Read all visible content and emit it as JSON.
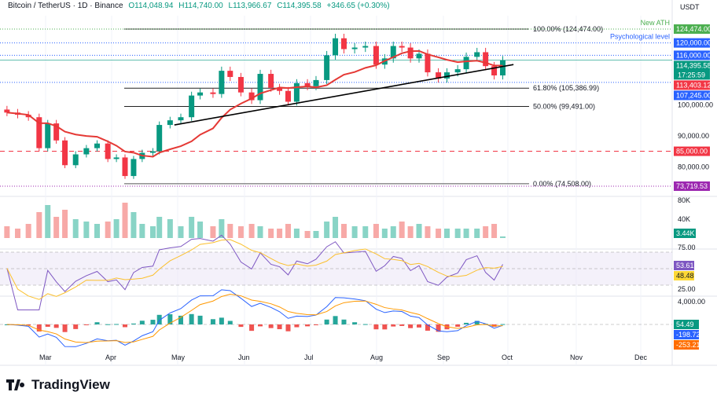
{
  "header": {
    "symbol": "Bitcoin / TetherUS · 1D · Binance",
    "open": "O114,048.94",
    "high": "H114,740.00",
    "low": "L113,966.67",
    "close": "C114,395.58",
    "change": "+346.65 (+0.30%)"
  },
  "currency": "USDT",
  "brand": "TradingView",
  "colors": {
    "up": "#089981",
    "down": "#f23645",
    "ma": "#e53935",
    "blue": "#2962ff",
    "purple": "#9c27b0",
    "rsi": "#7e57c2",
    "signal": "#ff9800"
  },
  "chart_data": {
    "type": "candlestick",
    "x_ticks": [
      "Mar",
      "Apr",
      "May",
      "Jun",
      "Jul",
      "Aug",
      "Sep",
      "Oct",
      "Nov",
      "Dec"
    ],
    "y_ticks": [
      "100,000.00",
      "90,000.00",
      "80,000.00"
    ],
    "ylim": [
      73719.53,
      124474
    ],
    "dates": [
      "02-11",
      "02-16",
      "02-21",
      "02-26",
      "03-02",
      "03-06",
      "03-10",
      "03-15",
      "03-20",
      "03-25",
      "03-30",
      "04-03",
      "04-07",
      "04-11",
      "04-15",
      "04-20",
      "04-23",
      "04-28",
      "05-03",
      "05-08",
      "05-12",
      "05-18",
      "05-22",
      "05-26",
      "05-31",
      "06-05",
      "06-09",
      "06-14",
      "06-18",
      "06-22",
      "06-26",
      "07-01",
      "07-05",
      "07-10",
      "07-14",
      "07-18",
      "07-23",
      "07-28",
      "08-02",
      "08-06",
      "08-10",
      "08-14",
      "08-18",
      "08-22",
      "08-26",
      "08-31",
      "09-04",
      "09-09",
      "09-13",
      "09-18",
      "09-22",
      "09-26",
      "09-30"
    ],
    "closes": [
      97500,
      96800,
      96000,
      86000,
      94000,
      88500,
      80500,
      84000,
      86000,
      87500,
      82500,
      83000,
      77000,
      82500,
      84500,
      85000,
      93500,
      95000,
      96000,
      103000,
      104000,
      103500,
      111000,
      109000,
      104000,
      101500,
      110000,
      105500,
      104500,
      101000,
      107000,
      106000,
      108000,
      116000,
      121500,
      118000,
      118500,
      119000,
      113000,
      115000,
      119000,
      118500,
      115000,
      116500,
      110500,
      108500,
      110500,
      111500,
      115500,
      117000,
      112500,
      109500,
      114395.58
    ],
    "volume_k": [
      25,
      20,
      30,
      55,
      70,
      45,
      60,
      40,
      35,
      30,
      35,
      40,
      75,
      55,
      30,
      25,
      45,
      40,
      25,
      45,
      35,
      25,
      40,
      30,
      25,
      30,
      25,
      20,
      20,
      30,
      20,
      15,
      15,
      35,
      45,
      30,
      25,
      25,
      30,
      20,
      25,
      35,
      25,
      30,
      25,
      20,
      20,
      20,
      20,
      20,
      25,
      30,
      3.44
    ],
    "ma_label": "113,403.12",
    "volume_ticks": [
      "80K",
      "40K"
    ],
    "volume_last": "3.44K",
    "rsi": {
      "ticks": [
        "75.00",
        "25.00"
      ],
      "value": "53.61",
      "ma": "48.48"
    },
    "macd": {
      "ticks": [
        "4,000.00"
      ],
      "hist": "54.49",
      "macd": "-198.72",
      "signal": "-253.21"
    },
    "levels": [
      {
        "price": 124474,
        "label": "124,474.00",
        "color": "#4caf50",
        "note": "New ATH",
        "style": "dotted"
      },
      {
        "price": 120000,
        "label": "120,000.00",
        "color": "#2962ff",
        "note": "Psychological level",
        "style": "dotted"
      },
      {
        "price": 116000,
        "label": "116,000.00",
        "color": "#2962ff",
        "note": "",
        "style": "dotted"
      },
      {
        "price": 114395.58,
        "label": "114,395.58",
        "color": "#089981",
        "note": "",
        "style": "thin",
        "sub": "17:25:59"
      },
      {
        "price": 107245,
        "label": "107,245.00",
        "color": "#2962ff",
        "note": "",
        "style": "dotted"
      },
      {
        "price": 85000,
        "label": "85,000.00",
        "color": "#f23645",
        "note": "",
        "style": "dashed"
      },
      {
        "price": 73719.53,
        "label": "73,719.53",
        "color": "#9c27b0",
        "note": "",
        "style": "dotted"
      }
    ],
    "fibonacci": [
      {
        "price": 124474,
        "label": "100.00% (124,474.00)"
      },
      {
        "price": 105386.99,
        "label": "61.80% (105,386.99)"
      },
      {
        "price": 99491,
        "label": "50.00% (99,491.00)"
      },
      {
        "price": 74508,
        "label": "0.00% (74,508.00)"
      }
    ],
    "trendline": [
      {
        "date": "04-30",
        "price": 93500
      },
      {
        "date": "10-05",
        "price": 113000
      }
    ]
  }
}
